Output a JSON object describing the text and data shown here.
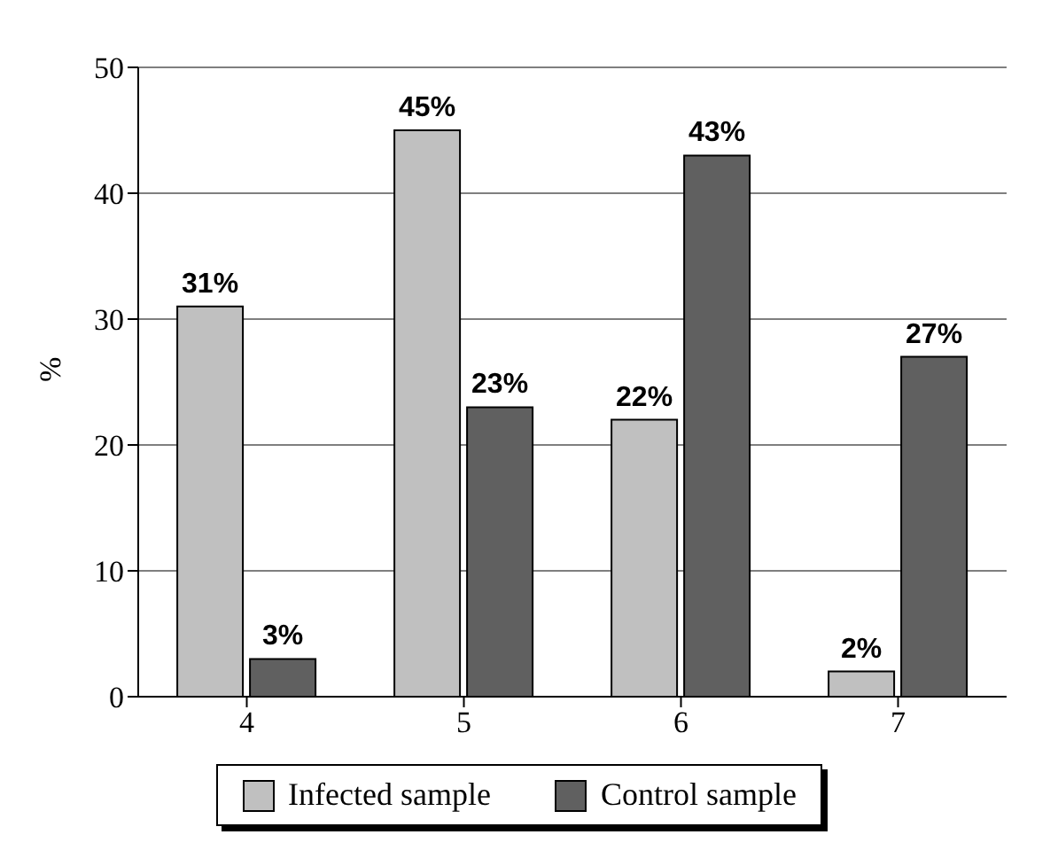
{
  "chart_data": {
    "type": "bar",
    "ylabel": "%",
    "categories": [
      "4",
      "5",
      "6",
      "7"
    ],
    "series": [
      {
        "name": "Infected sample",
        "color": "#c0c0c0",
        "values": [
          31,
          45,
          22,
          2
        ],
        "value_labels": [
          "31%",
          "45%",
          "22%",
          "2%"
        ]
      },
      {
        "name": "Control sample",
        "color": "#606060",
        "values": [
          3,
          23,
          43,
          27
        ],
        "value_labels": [
          "3%",
          "23%",
          "43%",
          "27%"
        ]
      }
    ],
    "ylim": [
      0,
      50
    ],
    "yticks": [
      0,
      10,
      20,
      30,
      40,
      50
    ],
    "grid": "y",
    "legend": "bottom"
  }
}
